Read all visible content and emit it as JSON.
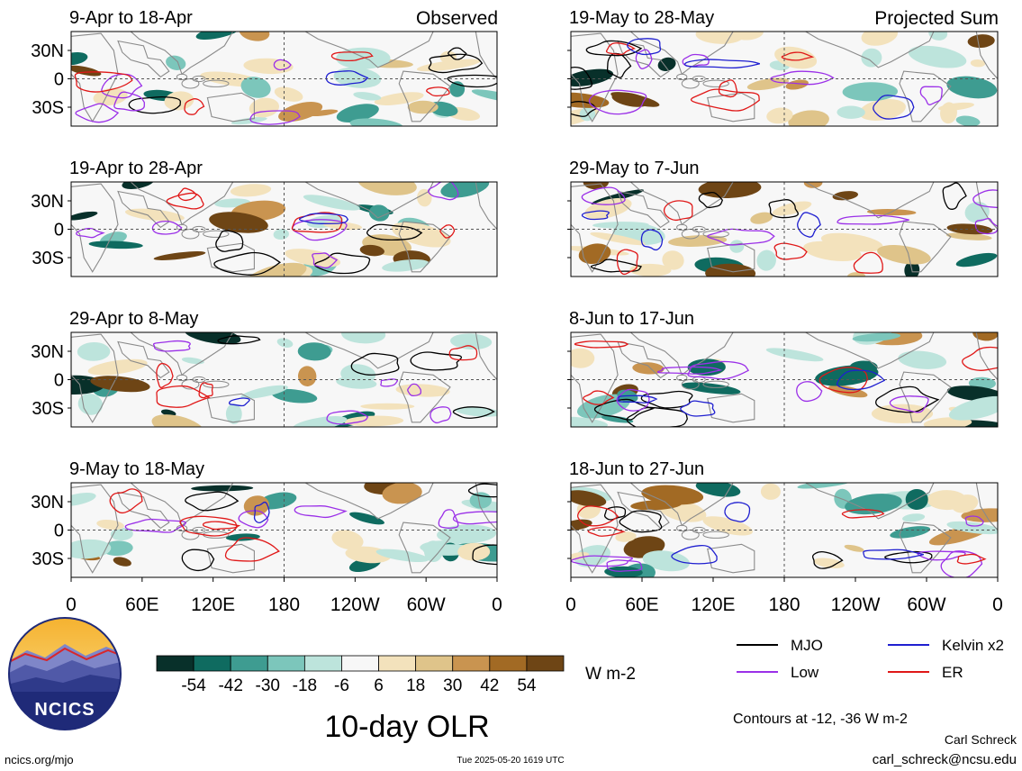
{
  "chart_data": {
    "type": "heatmap",
    "title": "10-day OLR",
    "units": "W m-2",
    "contour_note": "Contours at -12, -36 W m-2",
    "corner_labels": {
      "left": "Observed",
      "right": "Projected Sum"
    },
    "x_ticks": [
      "0",
      "60E",
      "120E",
      "180",
      "120W",
      "60W",
      "0"
    ],
    "y_ticks": [
      "30N",
      "0",
      "30S"
    ],
    "panels": [
      {
        "column": "observed",
        "label": "9-Apr to 18-Apr"
      },
      {
        "column": "observed",
        "label": "19-Apr to 28-Apr"
      },
      {
        "column": "observed",
        "label": "29-Apr to 8-May"
      },
      {
        "column": "observed",
        "label": "9-May to 18-May"
      },
      {
        "column": "projected",
        "label": "19-May to 28-May"
      },
      {
        "column": "projected",
        "label": "29-May to 7-Jun"
      },
      {
        "column": "projected",
        "label": "8-Jun to 17-Jun"
      },
      {
        "column": "projected",
        "label": "18-Jun to 27-Jun"
      }
    ],
    "colorbar": {
      "tick_labels": [
        "-54",
        "-42",
        "-30",
        "-18",
        "-6",
        "6",
        "18",
        "30",
        "42",
        "54"
      ],
      "colors": [
        "#08302a",
        "#0f6b60",
        "#3e9c91",
        "#7cc6bb",
        "#bde4dc",
        "#f7f7f7",
        "#f3e2bc",
        "#dfc48a",
        "#c99450",
        "#a26a24",
        "#6e4515"
      ]
    },
    "legend": [
      {
        "label": "MJO",
        "color": "#000000"
      },
      {
        "label": "Kelvin x2",
        "color": "#1f1fd0"
      },
      {
        "label": "Low",
        "color": "#9b30e8"
      },
      {
        "label": "ER",
        "color": "#e01818"
      }
    ]
  },
  "footer": {
    "logo_text": "NCICS",
    "url": "ncics.org/mjo",
    "timestamp": "Tue 2025-05-20 1619 UTC",
    "author": "Carl Schreck",
    "email": "carl_schreck@ncsu.edu"
  }
}
